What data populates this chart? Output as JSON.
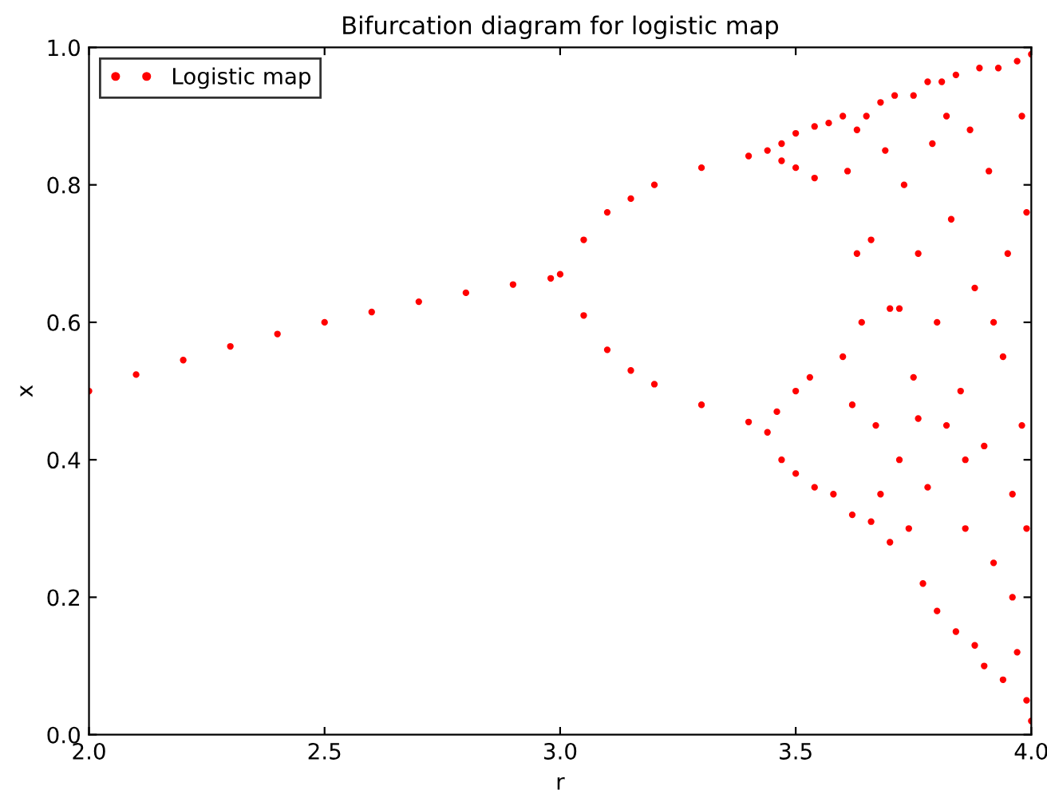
{
  "chart_data": {
    "type": "scatter",
    "title": "Bifurcation diagram for logistic map",
    "xlabel": "r",
    "ylabel": "x",
    "xlim": [
      2.0,
      4.0
    ],
    "xticks": [
      {
        "value": 2,
        "label": "2.0"
      },
      2.5,
      {
        "value": 3,
        "label": "3.0"
      },
      3.5,
      {
        "value": 4,
        "label": "4.0"
      }
    ],
    "ylim": [
      0.0,
      1.0
    ],
    "yticks": [
      {
        "value": 0,
        "label": "0.0"
      },
      0.2,
      0.4,
      0.6,
      0.8,
      {
        "value": 1,
        "label": "1.0"
      }
    ],
    "grid": false,
    "legend": "top left",
    "marker": "circle",
    "series": [
      {
        "name": "Logistic map",
        "color": "#ff0000",
        "x": [
          2.0,
          2.1,
          2.2,
          2.3,
          2.4,
          2.5,
          2.6,
          2.7,
          2.8,
          2.9,
          2.98,
          3.0,
          3.05,
          3.1,
          3.15,
          3.2,
          3.3,
          3.4,
          3.44,
          3.05,
          3.1,
          3.15,
          3.2,
          3.3,
          3.4,
          3.44,
          3.47,
          3.5,
          3.54,
          3.47,
          3.5,
          3.54,
          3.46,
          3.5,
          3.53,
          3.47,
          3.5,
          3.54,
          3.57,
          3.58,
          3.6,
          3.6,
          3.61,
          3.62,
          3.62,
          3.63,
          3.64,
          3.65,
          3.66,
          3.66,
          3.67,
          3.68,
          3.69,
          3.7,
          3.7,
          3.71,
          3.72,
          3.73,
          3.74,
          3.75,
          3.75,
          3.76,
          3.77,
          3.78,
          3.78,
          3.79,
          3.8,
          3.8,
          3.81,
          3.82,
          3.83,
          3.84,
          3.84,
          3.85,
          3.86,
          3.87,
          3.88,
          3.88,
          3.89,
          3.9,
          3.9,
          3.91,
          3.92,
          3.93,
          3.94,
          3.94,
          3.95,
          3.96,
          3.97,
          3.97,
          3.98,
          3.98,
          3.99,
          3.99,
          4.0,
          4.0,
          3.63,
          3.68,
          3.72,
          3.76,
          3.82,
          3.86,
          3.92,
          3.96,
          3.99
        ],
        "values": [
          0.5,
          0.524,
          0.545,
          0.565,
          0.583,
          0.6,
          0.615,
          0.63,
          0.643,
          0.655,
          0.664,
          0.67,
          0.72,
          0.76,
          0.78,
          0.8,
          0.825,
          0.842,
          0.85,
          0.61,
          0.56,
          0.53,
          0.51,
          0.48,
          0.455,
          0.44,
          0.86,
          0.875,
          0.885,
          0.835,
          0.825,
          0.81,
          0.47,
          0.5,
          0.52,
          0.4,
          0.38,
          0.36,
          0.89,
          0.35,
          0.9,
          0.55,
          0.82,
          0.32,
          0.48,
          0.88,
          0.6,
          0.9,
          0.31,
          0.72,
          0.45,
          0.92,
          0.85,
          0.28,
          0.62,
          0.93,
          0.4,
          0.8,
          0.3,
          0.93,
          0.52,
          0.7,
          0.22,
          0.95,
          0.36,
          0.86,
          0.18,
          0.6,
          0.95,
          0.45,
          0.75,
          0.15,
          0.96,
          0.5,
          0.3,
          0.88,
          0.13,
          0.65,
          0.97,
          0.1,
          0.42,
          0.82,
          0.25,
          0.97,
          0.08,
          0.55,
          0.7,
          0.35,
          0.98,
          0.12,
          0.9,
          0.45,
          0.05,
          0.76,
          0.02,
          0.99,
          0.7,
          0.35,
          0.62,
          0.46,
          0.9,
          0.4,
          0.6,
          0.2,
          0.3
        ]
      }
    ]
  }
}
